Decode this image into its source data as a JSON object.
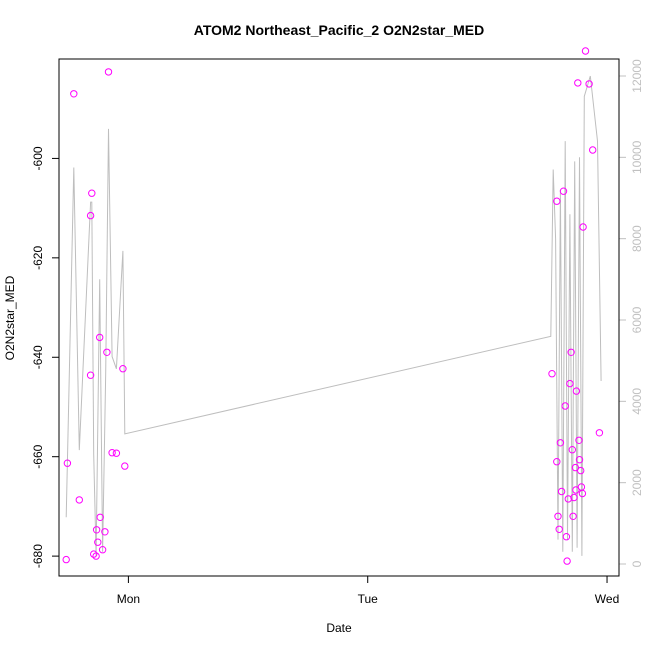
{
  "chart_data": {
    "type": "scatter",
    "title": "ATOM2 Northeast_Pacific_2 O2N2star_MED",
    "xlabel": "Date",
    "ylabel": "O2N2star_MED",
    "x_tick_labels": [
      "Mon",
      "Tue",
      "Wed"
    ],
    "x_ticks_days": [
      0,
      1,
      2
    ],
    "x_range_days": [
      -0.29,
      2.05
    ],
    "ylim": [
      -684,
      -580
    ],
    "y_ticks": [
      -600,
      -620,
      -640,
      -660,
      -680
    ],
    "y_right_lim": [
      0,
      12000
    ],
    "y_right_ticks": [
      0,
      2000,
      4000,
      6000,
      8000,
      10000,
      12000
    ],
    "colors": {
      "points": "#ff00ff",
      "line": "#bebebe",
      "right_axis": "#c0c0c0",
      "frame": "#000000"
    },
    "series": [
      {
        "type": "scatter",
        "axis": "left",
        "points": [
          [
            -0.26,
            -680.7
          ],
          [
            -0.255,
            -661.3
          ],
          [
            -0.228,
            -587.0
          ],
          [
            -0.205,
            -668.7
          ],
          [
            -0.158,
            -643.6
          ],
          [
            -0.158,
            -611.5
          ],
          [
            -0.153,
            -607.0
          ],
          [
            -0.145,
            -679.6
          ],
          [
            -0.135,
            -680.0
          ],
          [
            -0.133,
            -674.7
          ],
          [
            -0.128,
            -677.2
          ],
          [
            -0.12,
            -636.0
          ],
          [
            -0.118,
            -672.2
          ],
          [
            -0.108,
            -678.7
          ],
          [
            -0.098,
            -675.1
          ],
          [
            -0.09,
            -639.0
          ],
          [
            -0.083,
            -582.6
          ],
          [
            -0.068,
            -659.2
          ],
          [
            -0.05,
            -659.3
          ],
          [
            -0.023,
            -642.3
          ],
          [
            -0.015,
            -661.9
          ],
          [
            1.77,
            -643.3
          ],
          [
            1.79,
            -608.6
          ],
          [
            1.79,
            -661.0
          ],
          [
            1.795,
            -672.0
          ],
          [
            1.8,
            -674.6
          ],
          [
            1.805,
            -657.2
          ],
          [
            1.81,
            -667.0
          ],
          [
            1.818,
            -606.6
          ],
          [
            1.825,
            -649.8
          ],
          [
            1.83,
            -676.1
          ],
          [
            1.833,
            -681.0
          ],
          [
            1.838,
            -668.5
          ],
          [
            1.845,
            -645.3
          ],
          [
            1.85,
            -639.0
          ],
          [
            1.855,
            -658.6
          ],
          [
            1.858,
            -672.0
          ],
          [
            1.862,
            -668.2
          ],
          [
            1.868,
            -662.2
          ],
          [
            1.87,
            -666.7
          ],
          [
            1.872,
            -646.8
          ],
          [
            1.878,
            -584.8
          ],
          [
            1.883,
            -656.7
          ],
          [
            1.885,
            -660.6
          ],
          [
            1.89,
            -662.8
          ],
          [
            1.893,
            -666.1
          ],
          [
            1.897,
            -667.4
          ],
          [
            1.9,
            -613.8
          ],
          [
            1.91,
            -578.4
          ],
          [
            1.925,
            -585.0
          ],
          [
            1.94,
            -598.3
          ],
          [
            1.968,
            -655.2
          ]
        ]
      },
      {
        "type": "line",
        "axis": "right",
        "points": [
          [
            -0.26,
            1150
          ],
          [
            -0.228,
            9750
          ],
          [
            -0.205,
            2800
          ],
          [
            -0.158,
            8900
          ],
          [
            -0.153,
            8900
          ],
          [
            -0.145,
            2700
          ],
          [
            -0.135,
            200
          ],
          [
            -0.12,
            7000
          ],
          [
            -0.108,
            300
          ],
          [
            -0.095,
            4700
          ],
          [
            -0.083,
            10700
          ],
          [
            -0.068,
            5100
          ],
          [
            -0.05,
            4800
          ],
          [
            -0.023,
            7700
          ],
          [
            -0.015,
            3200
          ],
          [
            1.765,
            5600
          ],
          [
            1.775,
            9700
          ],
          [
            1.785,
            8000
          ],
          [
            1.795,
            600
          ],
          [
            1.805,
            9200
          ],
          [
            1.815,
            300
          ],
          [
            1.825,
            10400
          ],
          [
            1.835,
            600
          ],
          [
            1.845,
            8600
          ],
          [
            1.855,
            300
          ],
          [
            1.865,
            9900
          ],
          [
            1.875,
            400
          ],
          [
            1.885,
            10000
          ],
          [
            1.895,
            200
          ],
          [
            1.905,
            11500
          ],
          [
            1.93,
            12000
          ],
          [
            1.96,
            10400
          ],
          [
            1.975,
            4500
          ]
        ]
      }
    ]
  }
}
